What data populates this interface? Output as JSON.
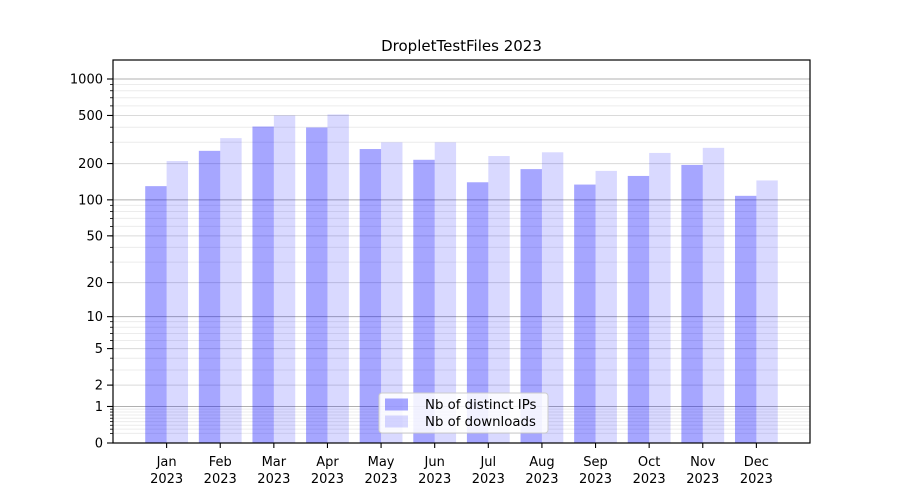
{
  "chart_data": {
    "type": "bar",
    "title": "DropletTestFiles 2023",
    "categories": [
      "Jan",
      "Feb",
      "Mar",
      "Apr",
      "May",
      "Jun",
      "Jul",
      "Aug",
      "Sep",
      "Oct",
      "Nov",
      "Dec"
    ],
    "year_label": "2023",
    "series": [
      {
        "name": "Nb of distinct IPs",
        "color": "rgba(0,0,255,0.35)",
        "solid_color": "#a6a6ff",
        "values": [
          130,
          255,
          405,
          398,
          264,
          215,
          140,
          180,
          134,
          158,
          195,
          108
        ]
      },
      {
        "name": "Nb of downloads",
        "color": "rgba(0,0,255,0.15)",
        "solid_color": "#d9d9ff",
        "values": [
          210,
          325,
          500,
          510,
          300,
          300,
          231,
          248,
          174,
          245,
          270,
          145
        ]
      }
    ],
    "yscale": "log1p",
    "yticks": [
      0,
      1,
      2,
      5,
      10,
      20,
      50,
      100,
      200,
      500,
      1000
    ],
    "ylim": [
      0,
      1430
    ],
    "xlabel": "",
    "ylabel": "",
    "grid": true,
    "legend_position": "bottom-center"
  },
  "colors": {
    "spine": "#000000",
    "grid_decade": "#b0b0b0",
    "grid_labeled": "#dadada",
    "grid_minor": "#ececec",
    "legend_border": "#cccccc",
    "legend_bg": "rgba(255,255,255,0.85)",
    "text": "#000000",
    "background": "#ffffff"
  }
}
